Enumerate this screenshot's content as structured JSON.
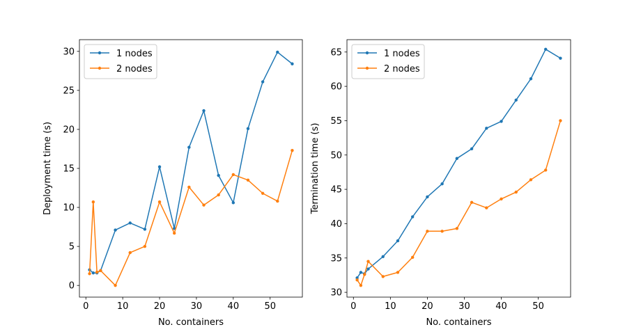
{
  "chart_data": [
    {
      "type": "line",
      "title": "",
      "xlabel": "No. containers",
      "ylabel": "Deployment time (s)",
      "xlim": [
        -1.75,
        58.75
      ],
      "ylim": [
        -1.5,
        31.5
      ],
      "xticks": [
        0,
        10,
        20,
        30,
        40,
        50
      ],
      "yticks": [
        0,
        5,
        10,
        15,
        20,
        25,
        30
      ],
      "grid": false,
      "legend_position": "upper-left",
      "series": [
        {
          "name": "1 nodes",
          "color": "#1f77b4",
          "x": [
            1,
            2,
            3,
            4,
            8,
            12,
            16,
            20,
            24,
            28,
            32,
            36,
            40,
            44,
            48,
            52,
            56
          ],
          "y": [
            2.0,
            1.6,
            1.6,
            1.9,
            7.1,
            8.0,
            7.2,
            15.2,
            7.3,
            17.7,
            22.4,
            14.1,
            10.6,
            20.1,
            26.1,
            29.9,
            28.4
          ]
        },
        {
          "name": "2 nodes",
          "color": "#ff7f0e",
          "x": [
            1,
            2,
            3,
            4,
            8,
            12,
            16,
            20,
            24,
            28,
            32,
            36,
            40,
            44,
            48,
            52,
            56
          ],
          "y": [
            1.5,
            10.7,
            1.7,
            1.9,
            0.0,
            4.2,
            5.0,
            10.7,
            6.7,
            12.6,
            10.3,
            11.6,
            14.2,
            13.5,
            11.8,
            10.8,
            17.3
          ]
        }
      ]
    },
    {
      "type": "line",
      "title": "",
      "xlabel": "No. containers",
      "ylabel": "Termination time (s)",
      "xlim": [
        -1.75,
        58.75
      ],
      "ylim": [
        29.3,
        66.8
      ],
      "xticks": [
        0,
        10,
        20,
        30,
        40,
        50
      ],
      "yticks": [
        30,
        35,
        40,
        45,
        50,
        55,
        60,
        65
      ],
      "grid": false,
      "legend_position": "upper-left",
      "series": [
        {
          "name": "1 nodes",
          "color": "#1f77b4",
          "x": [
            1,
            2,
            3,
            4,
            8,
            12,
            16,
            20,
            24,
            28,
            32,
            36,
            40,
            44,
            48,
            52,
            56
          ],
          "y": [
            32.1,
            32.9,
            32.7,
            33.4,
            35.2,
            37.5,
            41.0,
            43.9,
            45.8,
            49.5,
            50.9,
            53.9,
            54.9,
            58.0,
            61.1,
            65.4,
            64.1
          ]
        },
        {
          "name": "2 nodes",
          "color": "#ff7f0e",
          "x": [
            1,
            2,
            3,
            4,
            8,
            12,
            16,
            20,
            24,
            28,
            32,
            36,
            40,
            44,
            48,
            52,
            56
          ],
          "y": [
            31.8,
            31.0,
            32.6,
            34.5,
            32.3,
            32.9,
            35.1,
            38.9,
            38.9,
            39.3,
            43.1,
            42.3,
            43.6,
            44.6,
            46.4,
            47.8,
            55.0
          ]
        }
      ]
    }
  ]
}
